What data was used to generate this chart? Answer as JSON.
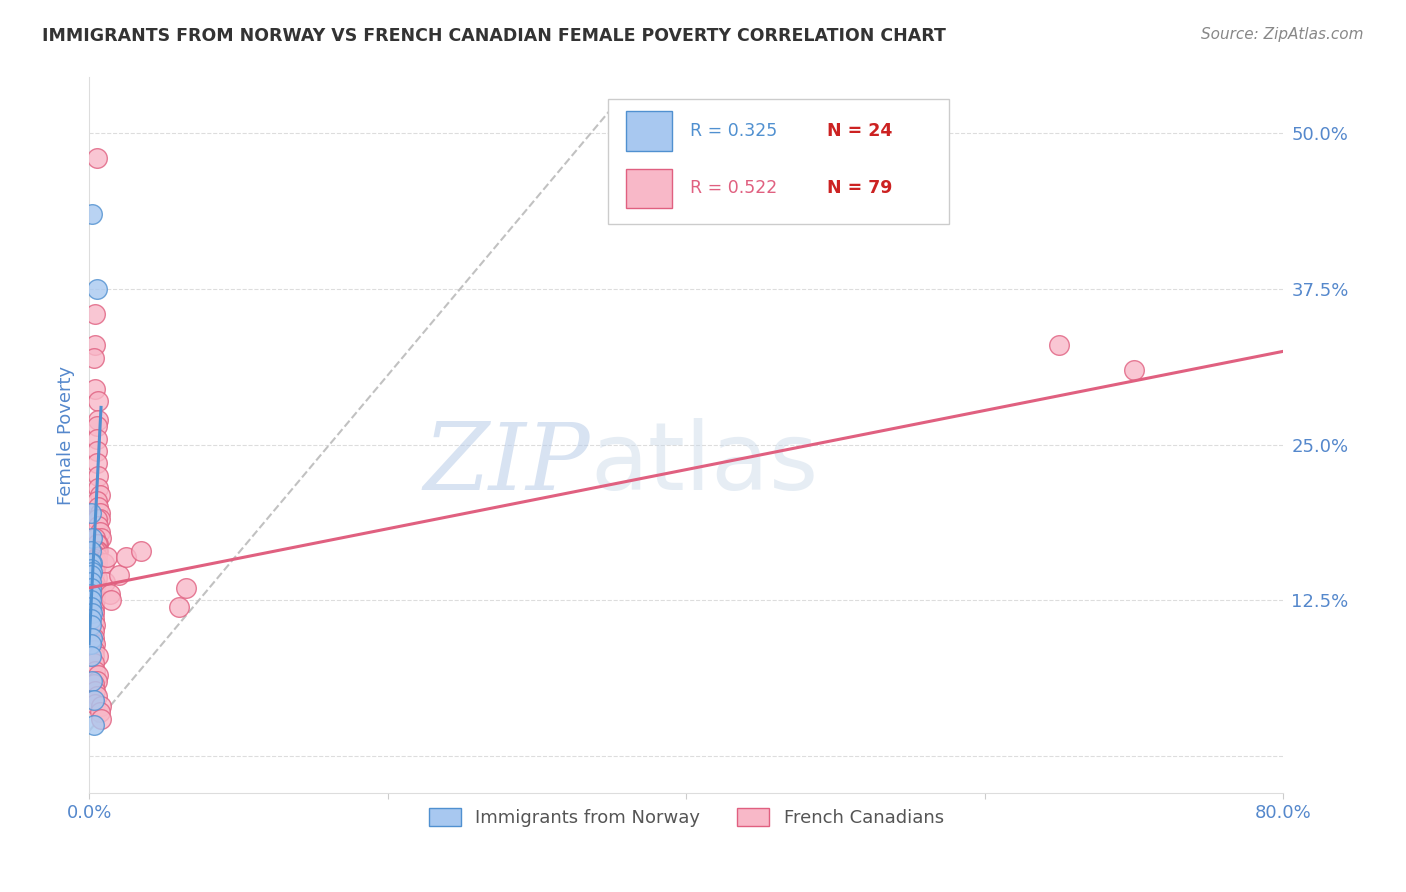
{
  "title": "IMMIGRANTS FROM NORWAY VS FRENCH CANADIAN FEMALE POVERTY CORRELATION CHART",
  "source": "Source: ZipAtlas.com",
  "ylabel": "Female Poverty",
  "xlim": [
    0.0,
    0.8
  ],
  "ylim": [
    -0.03,
    0.545
  ],
  "norway_color": "#a8c8f0",
  "french_color": "#f8b8c8",
  "norway_line_color": "#5090d0",
  "french_line_color": "#e06080",
  "norway_scatter": [
    [
      0.002,
      0.435
    ],
    [
      0.005,
      0.375
    ],
    [
      0.001,
      0.195
    ],
    [
      0.002,
      0.175
    ],
    [
      0.001,
      0.165
    ],
    [
      0.002,
      0.155
    ],
    [
      0.001,
      0.155
    ],
    [
      0.001,
      0.15
    ],
    [
      0.002,
      0.148
    ],
    [
      0.001,
      0.145
    ],
    [
      0.001,
      0.14
    ],
    [
      0.001,
      0.135
    ],
    [
      0.001,
      0.13
    ],
    [
      0.001,
      0.125
    ],
    [
      0.001,
      0.12
    ],
    [
      0.002,
      0.115
    ],
    [
      0.001,
      0.11
    ],
    [
      0.001,
      0.105
    ],
    [
      0.002,
      0.095
    ],
    [
      0.001,
      0.09
    ],
    [
      0.001,
      0.08
    ],
    [
      0.002,
      0.06
    ],
    [
      0.003,
      0.045
    ],
    [
      0.003,
      0.025
    ]
  ],
  "french_scatter": [
    [
      0.005,
      0.48
    ],
    [
      0.004,
      0.355
    ],
    [
      0.004,
      0.33
    ],
    [
      0.003,
      0.32
    ],
    [
      0.004,
      0.295
    ],
    [
      0.006,
      0.285
    ],
    [
      0.006,
      0.27
    ],
    [
      0.005,
      0.265
    ],
    [
      0.005,
      0.255
    ],
    [
      0.005,
      0.245
    ],
    [
      0.005,
      0.235
    ],
    [
      0.006,
      0.225
    ],
    [
      0.006,
      0.215
    ],
    [
      0.007,
      0.21
    ],
    [
      0.005,
      0.205
    ],
    [
      0.006,
      0.2
    ],
    [
      0.007,
      0.195
    ],
    [
      0.007,
      0.19
    ],
    [
      0.005,
      0.19
    ],
    [
      0.006,
      0.185
    ],
    [
      0.007,
      0.18
    ],
    [
      0.008,
      0.175
    ],
    [
      0.004,
      0.175
    ],
    [
      0.006,
      0.17
    ],
    [
      0.005,
      0.17
    ],
    [
      0.006,
      0.165
    ],
    [
      0.005,
      0.165
    ],
    [
      0.004,
      0.165
    ],
    [
      0.003,
      0.162
    ],
    [
      0.005,
      0.16
    ],
    [
      0.004,
      0.158
    ],
    [
      0.003,
      0.157
    ],
    [
      0.005,
      0.155
    ],
    [
      0.004,
      0.155
    ],
    [
      0.003,
      0.153
    ],
    [
      0.003,
      0.15
    ],
    [
      0.004,
      0.148
    ],
    [
      0.003,
      0.145
    ],
    [
      0.005,
      0.143
    ],
    [
      0.003,
      0.14
    ],
    [
      0.004,
      0.138
    ],
    [
      0.004,
      0.135
    ],
    [
      0.003,
      0.132
    ],
    [
      0.004,
      0.13
    ],
    [
      0.003,
      0.127
    ],
    [
      0.004,
      0.125
    ],
    [
      0.003,
      0.122
    ],
    [
      0.003,
      0.118
    ],
    [
      0.003,
      0.115
    ],
    [
      0.003,
      0.11
    ],
    [
      0.004,
      0.105
    ],
    [
      0.003,
      0.1
    ],
    [
      0.003,
      0.095
    ],
    [
      0.004,
      0.09
    ],
    [
      0.003,
      0.085
    ],
    [
      0.003,
      0.08
    ],
    [
      0.006,
      0.08
    ],
    [
      0.003,
      0.075
    ],
    [
      0.004,
      0.068
    ],
    [
      0.006,
      0.065
    ],
    [
      0.005,
      0.06
    ],
    [
      0.003,
      0.058
    ],
    [
      0.004,
      0.052
    ],
    [
      0.005,
      0.048
    ],
    [
      0.004,
      0.042
    ],
    [
      0.008,
      0.04
    ],
    [
      0.007,
      0.035
    ],
    [
      0.008,
      0.03
    ],
    [
      0.01,
      0.155
    ],
    [
      0.011,
      0.14
    ],
    [
      0.012,
      0.16
    ],
    [
      0.014,
      0.13
    ],
    [
      0.015,
      0.125
    ],
    [
      0.02,
      0.145
    ],
    [
      0.025,
      0.16
    ],
    [
      0.035,
      0.165
    ],
    [
      0.06,
      0.12
    ],
    [
      0.065,
      0.135
    ],
    [
      0.65,
      0.33
    ],
    [
      0.7,
      0.31
    ]
  ],
  "norway_trendline_x": [
    0.0,
    0.008
  ],
  "norway_trendline_y": [
    0.09,
    0.28
  ],
  "french_trendline_x": [
    0.0,
    0.8
  ],
  "french_trendline_y": [
    0.135,
    0.325
  ],
  "dash_line_x": [
    0.0,
    0.35
  ],
  "dash_line_y": [
    0.02,
    0.52
  ],
  "watermark_zip": "ZIP",
  "watermark_atlas": "atlas",
  "background_color": "#ffffff",
  "grid_color": "#dddddd",
  "title_color": "#333333",
  "source_color": "#888888",
  "axis_label_color": "#5588cc",
  "tick_label_color": "#5588cc",
  "legend_r1_color": "#5090d0",
  "legend_n1_color": "#cc2222",
  "legend_r2_color": "#e06080",
  "legend_n2_color": "#cc2222"
}
